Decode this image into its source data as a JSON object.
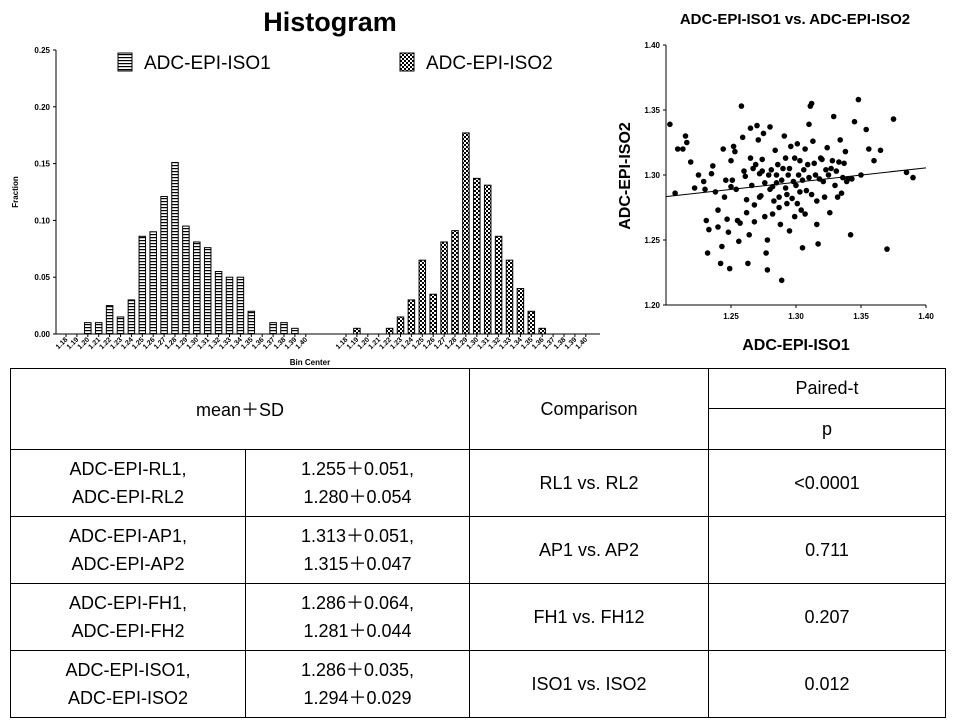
{
  "chart_data": [
    {
      "type": "bar",
      "title": "Histogram",
      "xlabel": "Bin Center",
      "ylabel": "Fraction",
      "ylim": [
        0,
        0.25
      ],
      "yticks": [
        "0.00",
        "0.05",
        "0.10",
        "0.15",
        "0.20",
        "0.25"
      ],
      "legend_position": "top",
      "colors": {
        "bar_stroke": "#000000",
        "bar_fill": "#ffffff"
      },
      "series": [
        {
          "name": "ADC-EPI-ISO1",
          "pattern": "horizontal-stripes",
          "categories": [
            "1.18",
            "1.19",
            "1.20",
            "1.21",
            "1.22",
            "1.23",
            "1.24",
            "1.25",
            "1.26",
            "1.27",
            "1.28",
            "1.29",
            "1.30",
            "1.31",
            "1.32",
            "1.33",
            "1.34",
            "1.35",
            "1.36",
            "1.37",
            "1.38",
            "1.39",
            "1.40"
          ],
          "values": [
            0,
            0,
            0.01,
            0.01,
            0.025,
            0.015,
            0.03,
            0.086,
            0.09,
            0.121,
            0.151,
            0.095,
            0.081,
            0.076,
            0.055,
            0.05,
            0.05,
            0.02,
            0,
            0.01,
            0.01,
            0.005,
            0
          ]
        },
        {
          "name": "ADC-EPI-ISO2",
          "pattern": "checker",
          "categories": [
            "1.18",
            "1.19",
            "1.20",
            "1.21",
            "1.22",
            "1.23",
            "1.24",
            "1.25",
            "1.26",
            "1.27",
            "1.28",
            "1.29",
            "1.30",
            "1.31",
            "1.32",
            "1.33",
            "1.34",
            "1.35",
            "1.36",
            "1.37",
            "1.38",
            "1.39",
            "1.40"
          ],
          "values": [
            0,
            0.005,
            0,
            0,
            0.005,
            0.015,
            0.03,
            0.065,
            0.035,
            0.081,
            0.091,
            0.177,
            0.137,
            0.131,
            0.086,
            0.065,
            0.04,
            0.02,
            0.005,
            0,
            0,
            0,
            0
          ]
        }
      ]
    },
    {
      "type": "scatter",
      "title": "ADC-EPI-ISO1 vs. ADC-EPI-ISO2",
      "xlabel": "ADC-EPI-ISO1",
      "ylabel": "ADC-EPI-ISO2",
      "xlim": [
        1.2,
        1.4
      ],
      "ylim": [
        1.2,
        1.4
      ],
      "xticks": [
        "1.25",
        "1.30",
        "1.35",
        "1.40"
      ],
      "yticks": [
        "1.20",
        "1.25",
        "1.30",
        "1.35",
        "1.40"
      ],
      "trendline": {
        "x": [
          1.2,
          1.4
        ],
        "y": [
          1.2834,
          1.3055
        ]
      },
      "points": [
        [
          1.203,
          1.339
        ],
        [
          1.207,
          1.286
        ],
        [
          1.209,
          1.32
        ],
        [
          1.213,
          1.32
        ],
        [
          1.215,
          1.33
        ],
        [
          1.216,
          1.325
        ],
        [
          1.219,
          1.31
        ],
        [
          1.222,
          1.29
        ],
        [
          1.225,
          1.3
        ],
        [
          1.229,
          1.295
        ],
        [
          1.23,
          1.289
        ],
        [
          1.231,
          1.265
        ],
        [
          1.232,
          1.24
        ],
        [
          1.233,
          1.258
        ],
        [
          1.235,
          1.301
        ],
        [
          1.236,
          1.307
        ],
        [
          1.238,
          1.287
        ],
        [
          1.24,
          1.26
        ],
        [
          1.24,
          1.273
        ],
        [
          1.242,
          1.232
        ],
        [
          1.243,
          1.245
        ],
        [
          1.244,
          1.32
        ],
        [
          1.245,
          1.283
        ],
        [
          1.246,
          1.296
        ],
        [
          1.247,
          1.266
        ],
        [
          1.248,
          1.256
        ],
        [
          1.249,
          1.228
        ],
        [
          1.25,
          1.291
        ],
        [
          1.25,
          1.311
        ],
        [
          1.251,
          1.296
        ],
        [
          1.252,
          1.322
        ],
        [
          1.253,
          1.318
        ],
        [
          1.254,
          1.289
        ],
        [
          1.255,
          1.265
        ],
        [
          1.256,
          1.249
        ],
        [
          1.257,
          1.263
        ],
        [
          1.258,
          1.353
        ],
        [
          1.259,
          1.329
        ],
        [
          1.26,
          1.303
        ],
        [
          1.261,
          1.299
        ],
        [
          1.262,
          1.281
        ],
        [
          1.262,
          1.271
        ],
        [
          1.263,
          1.232
        ],
        [
          1.264,
          1.254
        ],
        [
          1.265,
          1.313
        ],
        [
          1.265,
          1.336
        ],
        [
          1.266,
          1.292
        ],
        [
          1.267,
          1.305
        ],
        [
          1.268,
          1.264
        ],
        [
          1.268,
          1.277
        ],
        [
          1.269,
          1.308
        ],
        [
          1.27,
          1.338
        ],
        [
          1.271,
          1.327
        ],
        [
          1.272,
          1.301
        ],
        [
          1.272,
          1.283
        ],
        [
          1.273,
          1.284
        ],
        [
          1.274,
          1.303
        ],
        [
          1.274,
          1.312
        ],
        [
          1.275,
          1.332
        ],
        [
          1.276,
          1.294
        ],
        [
          1.276,
          1.268
        ],
        [
          1.277,
          1.24
        ],
        [
          1.278,
          1.227
        ],
        [
          1.278,
          1.25
        ],
        [
          1.279,
          1.3
        ],
        [
          1.28,
          1.337
        ],
        [
          1.28,
          1.289
        ],
        [
          1.281,
          1.304
        ],
        [
          1.282,
          1.291
        ],
        [
          1.282,
          1.27
        ],
        [
          1.283,
          1.28
        ],
        [
          1.284,
          1.319
        ],
        [
          1.285,
          1.294
        ],
        [
          1.285,
          1.3
        ],
        [
          1.286,
          1.308
        ],
        [
          1.287,
          1.283
        ],
        [
          1.287,
          1.275
        ],
        [
          1.288,
          1.262
        ],
        [
          1.289,
          1.219
        ],
        [
          1.289,
          1.296
        ],
        [
          1.29,
          1.305
        ],
        [
          1.291,
          1.33
        ],
        [
          1.292,
          1.313
        ],
        [
          1.292,
          1.29
        ],
        [
          1.293,
          1.285
        ],
        [
          1.293,
          1.278
        ],
        [
          1.294,
          1.3
        ],
        [
          1.295,
          1.257
        ],
        [
          1.295,
          1.305
        ],
        [
          1.296,
          1.322
        ],
        [
          1.297,
          1.282
        ],
        [
          1.298,
          1.295
        ],
        [
          1.299,
          1.268
        ],
        [
          1.299,
          1.313
        ],
        [
          1.3,
          1.292
        ],
        [
          1.301,
          1.278
        ],
        [
          1.301,
          1.324
        ],
        [
          1.302,
          1.3
        ],
        [
          1.303,
          1.311
        ],
        [
          1.303,
          1.287
        ],
        [
          1.304,
          1.273
        ],
        [
          1.305,
          1.244
        ],
        [
          1.305,
          1.296
        ],
        [
          1.306,
          1.304
        ],
        [
          1.307,
          1.27
        ],
        [
          1.307,
          1.32
        ],
        [
          1.308,
          1.288
        ],
        [
          1.309,
          1.308
        ],
        [
          1.31,
          1.298
        ],
        [
          1.31,
          1.339
        ],
        [
          1.311,
          1.353
        ],
        [
          1.312,
          1.355
        ],
        [
          1.312,
          1.285
        ],
        [
          1.313,
          1.326
        ],
        [
          1.314,
          1.309
        ],
        [
          1.315,
          1.3
        ],
        [
          1.316,
          1.28
        ],
        [
          1.316,
          1.262
        ],
        [
          1.317,
          1.247
        ],
        [
          1.318,
          1.297
        ],
        [
          1.319,
          1.313
        ],
        [
          1.32,
          1.312
        ],
        [
          1.321,
          1.295
        ],
        [
          1.322,
          1.283
        ],
        [
          1.323,
          1.304
        ],
        [
          1.324,
          1.321
        ],
        [
          1.325,
          1.3
        ],
        [
          1.326,
          1.271
        ],
        [
          1.327,
          1.305
        ],
        [
          1.328,
          1.311
        ],
        [
          1.329,
          1.345
        ],
        [
          1.33,
          1.292
        ],
        [
          1.331,
          1.303
        ],
        [
          1.332,
          1.283
        ],
        [
          1.333,
          1.31
        ],
        [
          1.334,
          1.327
        ],
        [
          1.335,
          1.286
        ],
        [
          1.336,
          1.298
        ],
        [
          1.337,
          1.309
        ],
        [
          1.338,
          1.318
        ],
        [
          1.339,
          1.295
        ],
        [
          1.34,
          1.297
        ],
        [
          1.342,
          1.254
        ],
        [
          1.343,
          1.297
        ],
        [
          1.345,
          1.341
        ],
        [
          1.348,
          1.358
        ],
        [
          1.35,
          1.3
        ],
        [
          1.354,
          1.335
        ],
        [
          1.356,
          1.32
        ],
        [
          1.36,
          1.311
        ],
        [
          1.365,
          1.319
        ],
        [
          1.37,
          1.243
        ],
        [
          1.375,
          1.343
        ],
        [
          1.385,
          1.302
        ],
        [
          1.39,
          1.298
        ]
      ]
    }
  ],
  "table": {
    "header": {
      "meansd": "mean＋SD",
      "comparison": "Comparison",
      "pairedt": "Paired-t",
      "p": "p"
    },
    "rows": [
      {
        "name1": "ADC-EPI-RL1,",
        "name2": "ADC-EPI-RL2",
        "val1": "1.255＋0.051,",
        "val2": "1.280＋0.054",
        "comparison": "RL1 vs. RL2",
        "p": "<0.0001"
      },
      {
        "name1": "ADC-EPI-AP1,",
        "name2": "ADC-EPI-AP2",
        "val1": "1.313＋0.051,",
        "val2": "1.315＋0.047",
        "comparison": "AP1 vs. AP2",
        "p": "0.711"
      },
      {
        "name1": "ADC-EPI-FH1,",
        "name2": "ADC-EPI-FH2",
        "val1": "1.286＋0.064,",
        "val2": "1.281＋0.044",
        "comparison": "FH1 vs. FH12",
        "p": "0.207"
      },
      {
        "name1": "ADC-EPI-ISO1,",
        "name2": "ADC-EPI-ISO2",
        "val1": "1.286＋0.035,",
        "val2": "1.294＋0.029",
        "comparison": "ISO1 vs. ISO2",
        "p": "0.012"
      }
    ]
  }
}
